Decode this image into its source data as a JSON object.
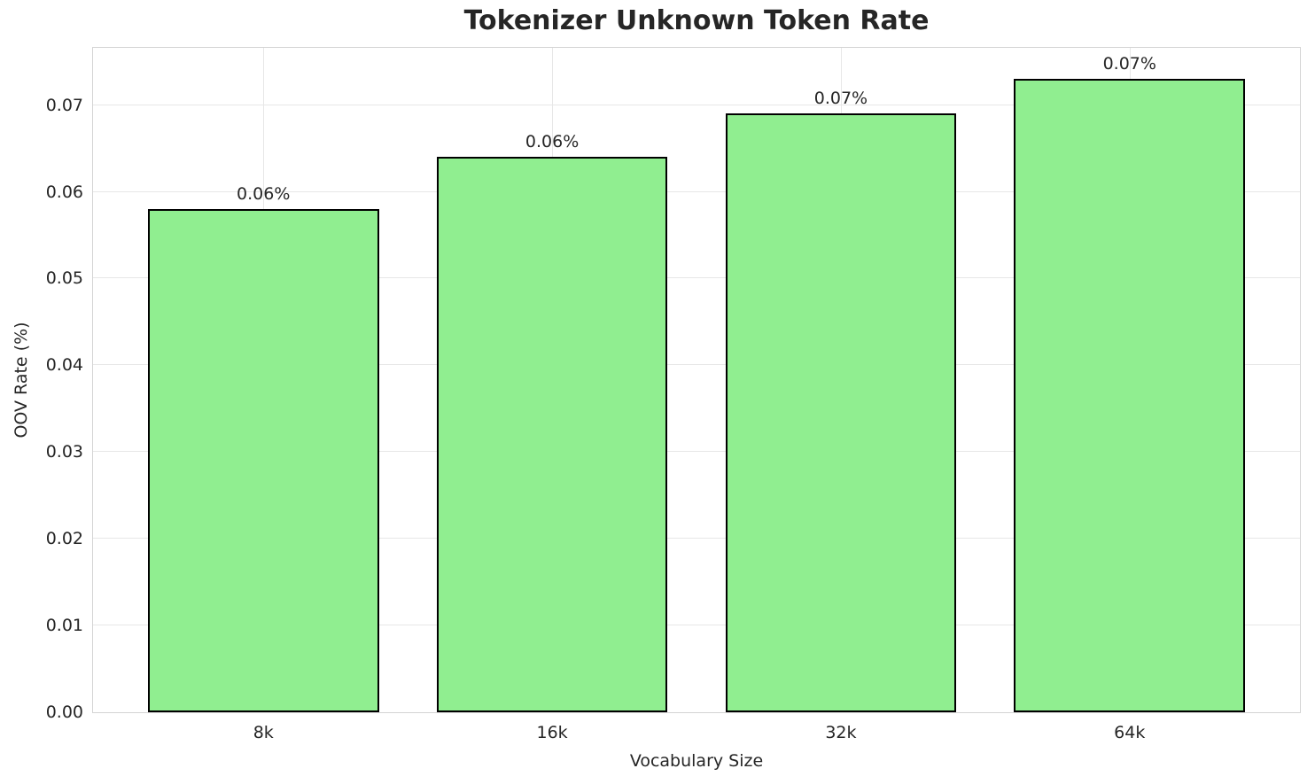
{
  "chart_data": {
    "type": "bar",
    "title": "Tokenizer Unknown Token Rate",
    "xlabel": "Vocabulary Size",
    "ylabel": "OOV Rate (%)",
    "categories": [
      "8k",
      "16k",
      "32k",
      "64k"
    ],
    "values": [
      0.058,
      0.064,
      0.069,
      0.073
    ],
    "bar_labels": [
      "0.06%",
      "0.06%",
      "0.07%",
      "0.07%"
    ],
    "yticks": [
      0.0,
      0.01,
      0.02,
      0.03,
      0.04,
      0.05,
      0.06,
      0.07
    ],
    "ytick_labels": [
      "0.00",
      "0.01",
      "0.02",
      "0.03",
      "0.04",
      "0.05",
      "0.06",
      "0.07"
    ],
    "ylim": [
      0,
      0.0766
    ],
    "xlim": [
      -0.59,
      3.59
    ],
    "bar_width": 0.8,
    "grid": "on",
    "legend": "none",
    "colors": {
      "bar_fill": "#90EE90",
      "bar_edge": "#000000",
      "grid_color": "#e7e7e7",
      "spine_color": "#d4d4d4",
      "text_color": "#262626",
      "background": "#ffffff"
    }
  }
}
